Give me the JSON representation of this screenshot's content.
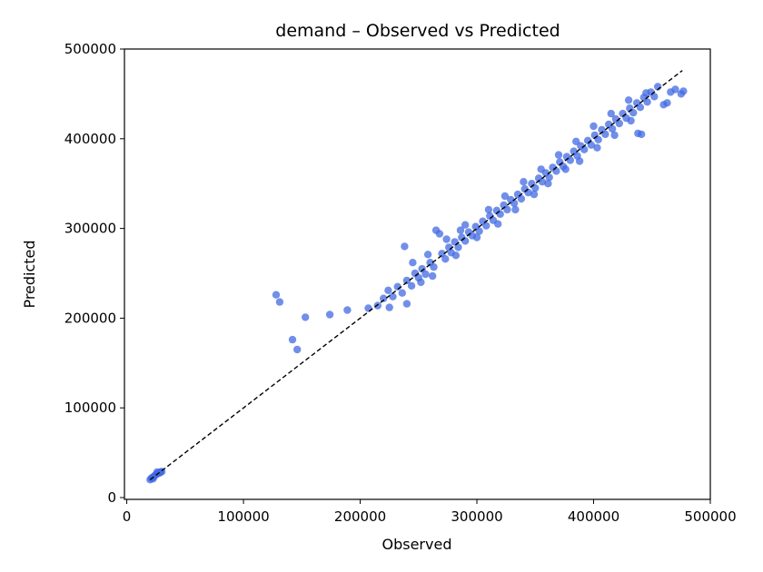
{
  "chart_data": {
    "type": "scatter",
    "title": "demand – Observed vs Predicted",
    "xlabel": "Observed",
    "ylabel": "Predicted",
    "xlim": [
      -2000,
      500000
    ],
    "ylim": [
      -2000,
      500000
    ],
    "xticks": [
      0,
      100000,
      200000,
      300000,
      400000,
      500000
    ],
    "yticks": [
      0,
      100000,
      200000,
      300000,
      400000,
      500000
    ],
    "xtick_labels": [
      "0",
      "100000",
      "200000",
      "300000",
      "400000",
      "500000"
    ],
    "ytick_labels": [
      "0",
      "100000",
      "200000",
      "300000",
      "400000",
      "500000"
    ],
    "grid": false,
    "reference_line": {
      "style": "dashed",
      "color": "#000000",
      "from": [
        20000,
        20000
      ],
      "to": [
        476000,
        476000
      ]
    },
    "marker_color": "#4169e1",
    "series": [
      {
        "points": [
          [
            20000,
            20000
          ],
          [
            21000,
            21500
          ],
          [
            22000,
            22500
          ],
          [
            23000,
            23000
          ],
          [
            24000,
            24500
          ],
          [
            25000,
            25500
          ],
          [
            26000,
            26500
          ],
          [
            27000,
            27000
          ],
          [
            28000,
            27500
          ],
          [
            29000,
            28500
          ],
          [
            30000,
            29000
          ],
          [
            22500,
            21000
          ],
          [
            26000,
            28500
          ],
          [
            128000,
            226000
          ],
          [
            131000,
            218000
          ],
          [
            142000,
            176000
          ],
          [
            146000,
            165000
          ],
          [
            153000,
            201000
          ],
          [
            174000,
            204000
          ],
          [
            189000,
            209000
          ],
          [
            238000,
            280000
          ],
          [
            207000,
            211000
          ],
          [
            215000,
            214000
          ],
          [
            220000,
            222000
          ],
          [
            224000,
            231000
          ],
          [
            228000,
            224000
          ],
          [
            232000,
            235000
          ],
          [
            236000,
            228000
          ],
          [
            240000,
            242000
          ],
          [
            244000,
            236000
          ],
          [
            247000,
            250000
          ],
          [
            250000,
            245000
          ],
          [
            253000,
            255000
          ],
          [
            256000,
            249000
          ],
          [
            260000,
            262000
          ],
          [
            263000,
            257000
          ],
          [
            265000,
            298000
          ],
          [
            268000,
            294000
          ],
          [
            270000,
            272000
          ],
          [
            273000,
            266000
          ],
          [
            276000,
            279000
          ],
          [
            278000,
            273000
          ],
          [
            281000,
            285000
          ],
          [
            284000,
            279000
          ],
          [
            287000,
            290000
          ],
          [
            290000,
            286000
          ],
          [
            290000,
            304000
          ],
          [
            293000,
            296000
          ],
          [
            296000,
            292000
          ],
          [
            299000,
            302000
          ],
          [
            302000,
            297000
          ],
          [
            305000,
            308000
          ],
          [
            308000,
            303000
          ],
          [
            311000,
            314000
          ],
          [
            314000,
            309000
          ],
          [
            317000,
            320000
          ],
          [
            320000,
            316000
          ],
          [
            323000,
            326000
          ],
          [
            326000,
            321000
          ],
          [
            329000,
            332000
          ],
          [
            332000,
            328000
          ],
          [
            335000,
            338000
          ],
          [
            338000,
            333000
          ],
          [
            341000,
            344000
          ],
          [
            344000,
            340000
          ],
          [
            347000,
            350000
          ],
          [
            350000,
            345000
          ],
          [
            353000,
            356000
          ],
          [
            356000,
            352000
          ],
          [
            359000,
            362000
          ],
          [
            362000,
            357000
          ],
          [
            365000,
            368000
          ],
          [
            368000,
            364000
          ],
          [
            371000,
            374000
          ],
          [
            374000,
            369000
          ],
          [
            377000,
            380000
          ],
          [
            380000,
            376000
          ],
          [
            383000,
            386000
          ],
          [
            386000,
            381000
          ],
          [
            389000,
            392000
          ],
          [
            392000,
            388000
          ],
          [
            395000,
            398000
          ],
          [
            398000,
            393000
          ],
          [
            401000,
            404000
          ],
          [
            404000,
            399000
          ],
          [
            407000,
            410000
          ],
          [
            410000,
            405000
          ],
          [
            413000,
            416000
          ],
          [
            416000,
            411000
          ],
          [
            419000,
            422000
          ],
          [
            422000,
            417000
          ],
          [
            425000,
            428000
          ],
          [
            428000,
            423000
          ],
          [
            431000,
            434000
          ],
          [
            434000,
            429000
          ],
          [
            437000,
            440000
          ],
          [
            440000,
            435000
          ],
          [
            443000,
            446000
          ],
          [
            446000,
            441000
          ],
          [
            449000,
            452000
          ],
          [
            452000,
            447000
          ],
          [
            455000,
            458000
          ],
          [
            460000,
            438000
          ],
          [
            463000,
            440000
          ],
          [
            466000,
            452000
          ],
          [
            470000,
            455000
          ],
          [
            475000,
            450000
          ],
          [
            477000,
            453000
          ],
          [
            438000,
            406000
          ],
          [
            441000,
            405000
          ],
          [
            225000,
            212000
          ],
          [
            240000,
            216000
          ],
          [
            252000,
            240000
          ],
          [
            262000,
            247000
          ],
          [
            282000,
            270000
          ],
          [
            300000,
            290000
          ],
          [
            318000,
            305000
          ],
          [
            333000,
            321000
          ],
          [
            349000,
            338000
          ],
          [
            361000,
            350000
          ],
          [
            376000,
            366000
          ],
          [
            388000,
            375000
          ],
          [
            403000,
            390000
          ],
          [
            418000,
            404000
          ],
          [
            432000,
            420000
          ],
          [
            245000,
            262000
          ],
          [
            258000,
            271000
          ],
          [
            274000,
            288000
          ],
          [
            286000,
            298000
          ],
          [
            310000,
            321000
          ],
          [
            324000,
            336000
          ],
          [
            340000,
            352000
          ],
          [
            355000,
            366000
          ],
          [
            370000,
            382000
          ],
          [
            385000,
            397000
          ],
          [
            400000,
            414000
          ],
          [
            415000,
            428000
          ],
          [
            430000,
            443000
          ],
          [
            445000,
            451000
          ]
        ]
      }
    ]
  }
}
